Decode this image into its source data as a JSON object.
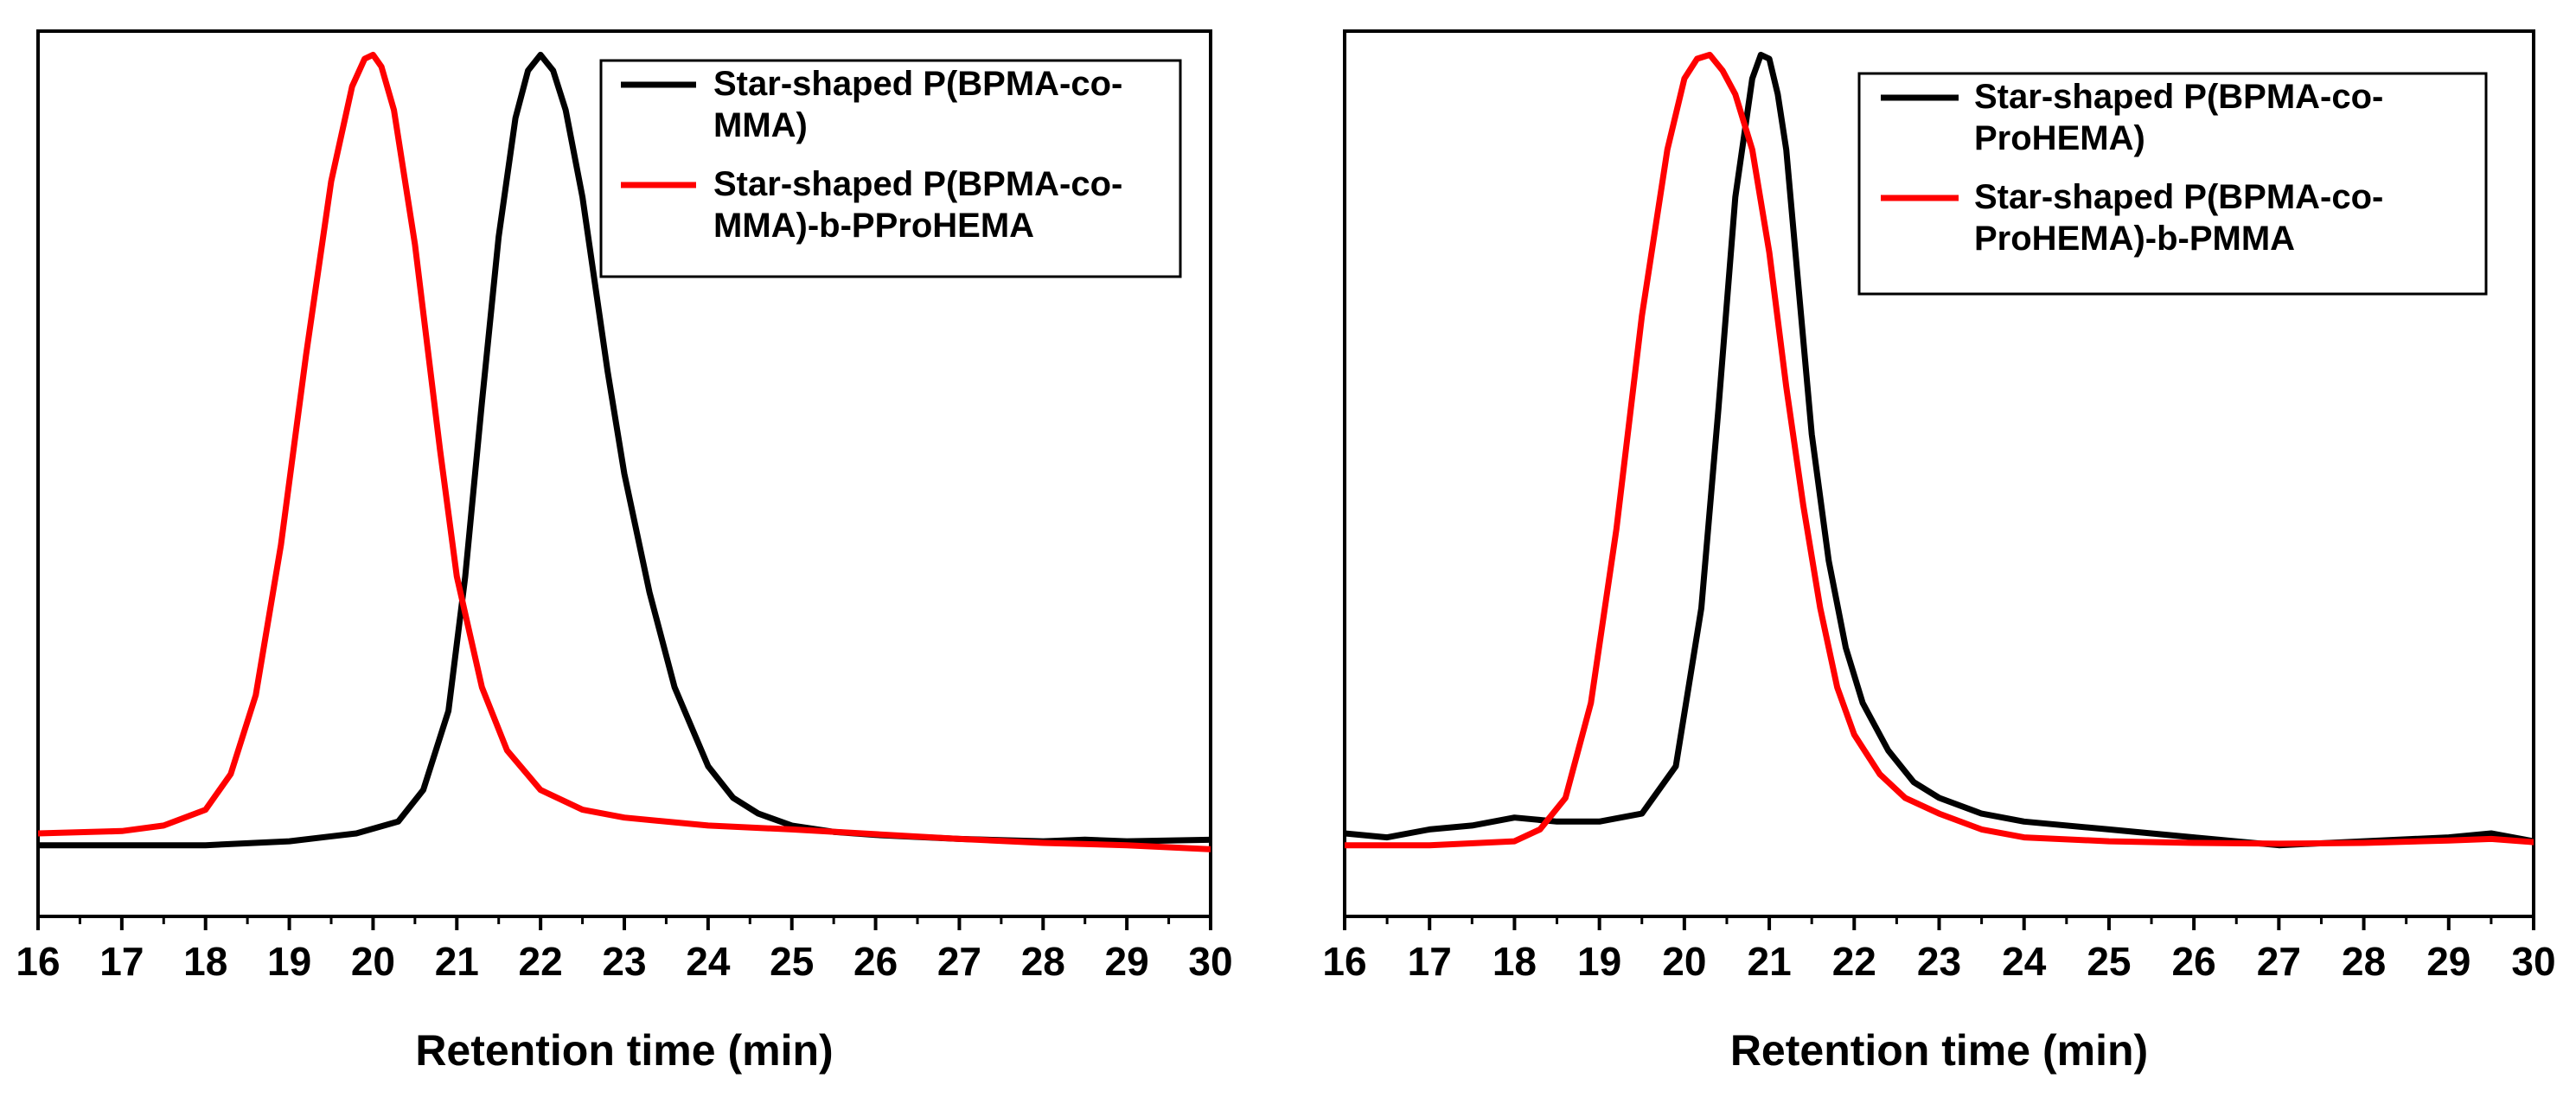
{
  "chart_data": [
    {
      "type": "line",
      "xlabel": "Retention time (min)",
      "ylabel": "",
      "xlim": [
        16,
        30
      ],
      "ylim": [
        -0.09,
        1.03
      ],
      "xticks": [
        "16",
        "17",
        "18",
        "19",
        "20",
        "21",
        "22",
        "23",
        "24",
        "25",
        "26",
        "27",
        "28",
        "29",
        "30"
      ],
      "yticks_visible": false,
      "legend_position": "top-right",
      "series": [
        {
          "name_lines": [
            "Star-shaped P(BPMA-co-",
            "MMA)"
          ],
          "color": "#000000",
          "x": [
            16.0,
            17.0,
            18.0,
            19.0,
            19.8,
            20.3,
            20.6,
            20.9,
            21.1,
            21.3,
            21.5,
            21.7,
            21.85,
            22.0,
            22.15,
            22.3,
            22.5,
            22.8,
            23.0,
            23.3,
            23.6,
            24.0,
            24.3,
            24.6,
            25.0,
            25.5,
            26.0,
            27.0,
            28.0,
            28.5,
            29.0,
            30.0
          ],
          "y": [
            0.0,
            0.0,
            0.0,
            0.005,
            0.015,
            0.03,
            0.07,
            0.17,
            0.34,
            0.56,
            0.77,
            0.92,
            0.98,
            1.0,
            0.98,
            0.93,
            0.82,
            0.6,
            0.47,
            0.32,
            0.2,
            0.1,
            0.06,
            0.04,
            0.025,
            0.017,
            0.013,
            0.008,
            0.005,
            0.007,
            0.005,
            0.007
          ]
        },
        {
          "name_lines": [
            "Star-shaped P(BPMA-co-",
            "MMA)-b-PProHEMA"
          ],
          "color": "#ff0000",
          "x": [
            16.0,
            17.0,
            17.5,
            18.0,
            18.3,
            18.6,
            18.9,
            19.2,
            19.5,
            19.75,
            19.9,
            20.0,
            20.1,
            20.25,
            20.5,
            20.8,
            21.0,
            21.3,
            21.6,
            22.0,
            22.5,
            23.0,
            24.0,
            25.0,
            26.0,
            27.0,
            28.0,
            29.0,
            30.0
          ],
          "y": [
            0.015,
            0.018,
            0.025,
            0.045,
            0.09,
            0.19,
            0.38,
            0.62,
            0.84,
            0.96,
            0.995,
            1.0,
            0.985,
            0.93,
            0.76,
            0.5,
            0.34,
            0.2,
            0.12,
            0.07,
            0.045,
            0.035,
            0.025,
            0.02,
            0.014,
            0.008,
            0.003,
            0.0,
            -0.005
          ]
        }
      ]
    },
    {
      "type": "line",
      "xlabel": "Retention time (min)",
      "ylabel": "",
      "xlim": [
        16,
        30
      ],
      "ylim": [
        -0.09,
        1.03
      ],
      "xticks": [
        "16",
        "17",
        "18",
        "19",
        "20",
        "21",
        "22",
        "23",
        "24",
        "25",
        "26",
        "27",
        "28",
        "29",
        "30"
      ],
      "yticks_visible": false,
      "legend_position": "top-right",
      "series": [
        {
          "name_lines": [
            "Star-shaped P(BPMA-co-",
            "ProHEMA)"
          ],
          "color": "#000000",
          "x": [
            16.0,
            16.5,
            17.0,
            17.5,
            18.0,
            18.5,
            19.0,
            19.5,
            19.9,
            20.2,
            20.4,
            20.6,
            20.8,
            20.9,
            21.0,
            21.1,
            21.2,
            21.35,
            21.5,
            21.7,
            21.9,
            22.1,
            22.4,
            22.7,
            23.0,
            23.5,
            24.0,
            25.0,
            26.0,
            27.0,
            28.0,
            29.0,
            29.5,
            30.0
          ],
          "y": [
            0.015,
            0.01,
            0.02,
            0.025,
            0.035,
            0.03,
            0.03,
            0.04,
            0.1,
            0.3,
            0.55,
            0.82,
            0.97,
            1.0,
            0.995,
            0.95,
            0.88,
            0.7,
            0.52,
            0.36,
            0.25,
            0.18,
            0.12,
            0.08,
            0.06,
            0.04,
            0.03,
            0.02,
            0.01,
            0.0,
            0.005,
            0.01,
            0.015,
            0.005
          ]
        },
        {
          "name_lines": [
            "Star-shaped P(BPMA-co-",
            "ProHEMA)-b-PMMA"
          ],
          "color": "#ff0000",
          "x": [
            16.0,
            17.0,
            18.0,
            18.3,
            18.6,
            18.9,
            19.2,
            19.5,
            19.8,
            20.0,
            20.15,
            20.3,
            20.45,
            20.6,
            20.8,
            21.0,
            21.2,
            21.4,
            21.6,
            21.8,
            22.0,
            22.3,
            22.6,
            23.0,
            23.5,
            24.0,
            25.0,
            26.0,
            27.0,
            28.0,
            29.0,
            29.5,
            30.0
          ],
          "y": [
            0.0,
            0.0,
            0.005,
            0.02,
            0.06,
            0.18,
            0.4,
            0.67,
            0.88,
            0.97,
            0.995,
            1.0,
            0.98,
            0.95,
            0.88,
            0.75,
            0.58,
            0.43,
            0.3,
            0.2,
            0.14,
            0.09,
            0.06,
            0.04,
            0.02,
            0.01,
            0.005,
            0.003,
            0.002,
            0.003,
            0.006,
            0.008,
            0.004
          ]
        }
      ]
    }
  ]
}
